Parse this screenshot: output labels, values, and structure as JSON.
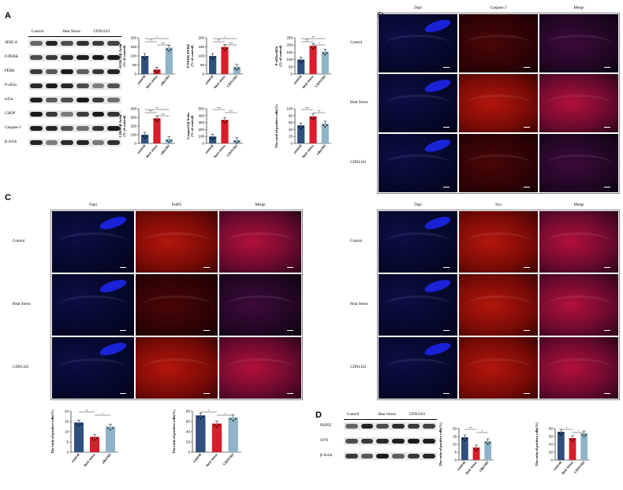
{
  "panels": {
    "A": "A",
    "B": "B",
    "C": "C",
    "D": "D"
  },
  "blotA": {
    "groups": [
      "Control",
      "Heat Stress",
      "CDN1163"
    ],
    "rows": [
      "SERCA",
      "P-PERK",
      "PERK",
      "P-eif2α",
      "eif2α",
      "CHOP",
      "Caspase-3",
      "β-Actin"
    ]
  },
  "blotD": {
    "groups": [
      "Control",
      "Heat Stress",
      "CDN1163"
    ],
    "rows": [
      "PSD95",
      "SYN",
      "β-Actin"
    ]
  },
  "imgB": {
    "cols": [
      "Dapi",
      "Caspase 3",
      "Merge"
    ],
    "rows": [
      "Control",
      "Heat Stress",
      "CDN1163"
    ]
  },
  "imgC": {
    "cols": [
      "Dapi",
      "Psd95",
      "Merge"
    ],
    "rows": [
      "Control",
      "Heat Stress",
      "CDN1163"
    ]
  },
  "imgSyn": {
    "cols": [
      "Dapi",
      "Syn",
      "Merge"
    ],
    "rows": [
      "Control",
      "Heat Stress",
      "CDN1163"
    ]
  },
  "colors": {
    "control": "#2f4f7f",
    "heat": "#d81e2a",
    "treat": "#8fb3c8"
  },
  "chart_data": [
    {
      "type": "bar",
      "ylabel": "SERCA/β-Actin\n(% of control)",
      "categories": [
        "control",
        "heat stress",
        "cdn1163"
      ],
      "values": [
        100,
        25,
        145
      ],
      "ylim": [
        0,
        200
      ],
      "yticks": [
        0,
        50,
        100,
        150,
        200
      ],
      "sig": [
        [
          "*",
          0,
          2
        ],
        [
          "**",
          0,
          1
        ],
        [
          "***",
          1,
          2
        ]
      ]
    },
    {
      "type": "bar",
      "ylabel": "P-PERK/PERK\n(% of control)",
      "categories": [
        "control",
        "heat stress",
        "CDN1163"
      ],
      "values": [
        100,
        150,
        40
      ],
      "ylim": [
        0,
        200
      ],
      "yticks": [
        0,
        50,
        100,
        150,
        200
      ],
      "sig": [
        [
          "*",
          0,
          2
        ],
        [
          "**",
          0,
          1
        ],
        [
          "***",
          1,
          2
        ]
      ]
    },
    {
      "type": "bar",
      "ylabel": "P-eif2α/eif2α\n(% of control)",
      "categories": [
        "control",
        "heat stress",
        "CDN1163"
      ],
      "values": [
        100,
        195,
        155
      ],
      "ylim": [
        0,
        250
      ],
      "yticks": [
        0,
        50,
        100,
        150,
        200,
        250
      ],
      "sig": [
        [
          "**",
          0,
          2
        ],
        [
          "***",
          0,
          1
        ],
        [
          "*",
          1,
          2
        ]
      ]
    },
    {
      "type": "bar",
      "ylabel": "CHOP/β-Actin\n(% of control)",
      "categories": [
        "control",
        "heat stress",
        "cdn1163"
      ],
      "values": [
        100,
        290,
        50
      ],
      "ylim": [
        0,
        400
      ],
      "yticks": [
        0,
        100,
        200,
        300,
        400
      ],
      "sig": [
        [
          "**",
          0,
          2
        ],
        [
          "***",
          0,
          1
        ],
        [
          "***",
          1,
          2
        ]
      ]
    },
    {
      "type": "bar",
      "ylabel": "Caspase3/β-Actin\n(% of control)",
      "categories": [
        "control",
        "heat stress",
        "CDN1163"
      ],
      "values": [
        100,
        340,
        50
      ],
      "ylim": [
        0,
        500
      ],
      "yticks": [
        0,
        100,
        200,
        300,
        400,
        500
      ],
      "sig": [
        [
          "***",
          0,
          1
        ],
        [
          "***",
          1,
          2
        ]
      ]
    },
    {
      "type": "bar",
      "ylabel": "The ratio of positive cells(%)",
      "categories": [
        "control",
        "heat stress",
        "cdn1163"
      ],
      "values": [
        52,
        78,
        57
      ],
      "ylim": [
        0,
        100
      ],
      "yticks": [
        0,
        20,
        40,
        60,
        80,
        100
      ],
      "sig": [
        [
          "***",
          0,
          1
        ],
        [
          "**",
          1,
          2
        ]
      ]
    },
    {
      "type": "bar",
      "ylabel": "The ratio of positive cells(%)",
      "categories": [
        "control",
        "heat stress",
        "cdn1163"
      ],
      "values": [
        14.5,
        7.5,
        12.5
      ],
      "ylim": [
        0,
        20
      ],
      "yticks": [
        0,
        5,
        10,
        15,
        20
      ],
      "sig": [
        [
          "**",
          0,
          1
        ],
        [
          "*",
          1,
          2
        ]
      ]
    },
    {
      "type": "bar",
      "ylabel": "The ratio of positive cells(%)",
      "categories": [
        "control",
        "heat stress",
        "CDN1163"
      ],
      "values": [
        72,
        56,
        68
      ],
      "ylim": [
        0,
        80
      ],
      "yticks": [
        0,
        20,
        40,
        60,
        80
      ],
      "sig": [
        [
          "*",
          0,
          1
        ],
        [
          "*",
          1,
          2
        ]
      ]
    },
    {
      "type": "bar",
      "ylabel": "The ratio of positive cells(%)",
      "categories": [
        "control",
        "heat stress",
        "cdn1163"
      ],
      "values": [
        14.5,
        8,
        12
      ],
      "ylim": [
        0,
        20
      ],
      "yticks": [
        0,
        5,
        10,
        15,
        20
      ],
      "sig": [
        [
          "**",
          0,
          1
        ],
        [
          "*",
          1,
          2
        ]
      ]
    },
    {
      "type": "bar",
      "ylabel": "The ratio of positive cells(%)",
      "categories": [
        "control",
        "heat stress",
        "CDN1163"
      ],
      "values": [
        72,
        56,
        68
      ],
      "ylim": [
        0,
        80
      ],
      "yticks": [
        0,
        20,
        40,
        60,
        80
      ],
      "sig": [
        [
          "*",
          0,
          1
        ],
        [
          "*",
          1,
          2
        ]
      ]
    }
  ]
}
